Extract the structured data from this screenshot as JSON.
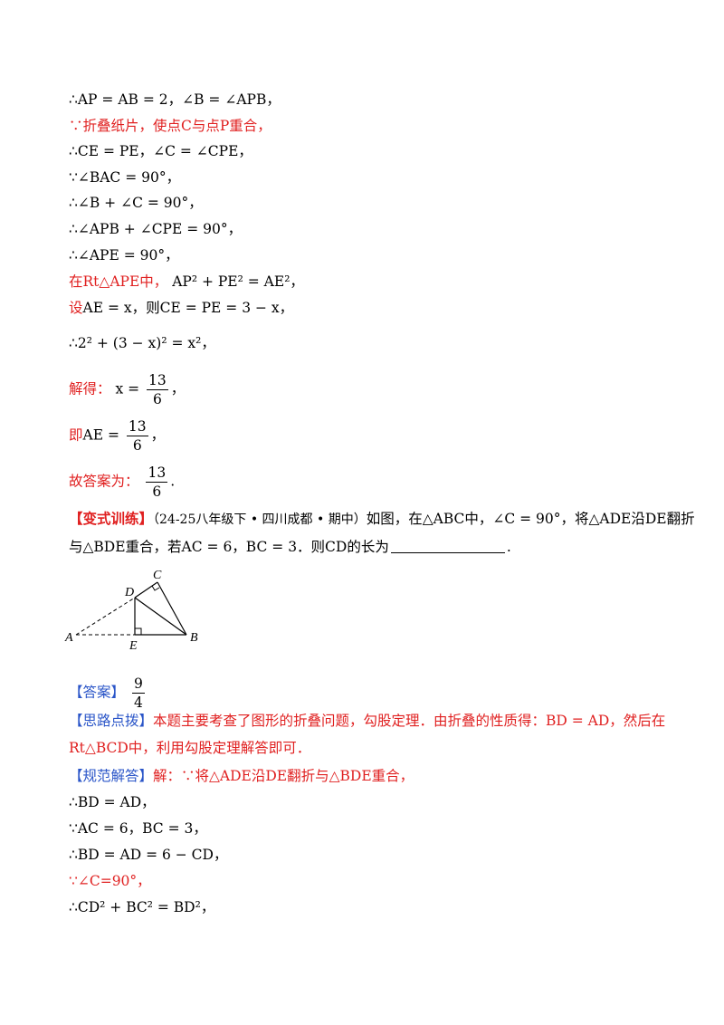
{
  "lines": {
    "l1": {
      "text": "∴AP = AB = 2，∠B = ∠APB，"
    },
    "l2": {
      "text": "∵折叠纸片，使点C与点P重合，"
    },
    "l3": {
      "text": "∴CE = PE，∠C = ∠CPE，"
    },
    "l4": {
      "text": "∵∠BAC = 90°，"
    },
    "l5": {
      "text": "∴∠B + ∠C = 90°，"
    },
    "l6": {
      "text": "∴∠APB + ∠CPE = 90°，"
    },
    "l7": {
      "text": "∴∠APE = 90°，"
    },
    "l8": {
      "prefix": "在Rt△APE中，",
      "formula": "AP² + PE² = AE²，"
    },
    "l9": {
      "prefix": "设",
      "formula": "AE = x，则CE = PE = 3 − x，"
    },
    "l10": {
      "text": "∴2² + (3 − x)² = x²，"
    },
    "l11": {
      "prefix": "解得：",
      "lhs": "x =",
      "num": "13",
      "den": "6",
      "suffix": "，"
    },
    "l12": {
      "prefix": "即",
      "lhs": "AE =",
      "num": "13",
      "den": "6",
      "suffix": "，"
    },
    "l13": {
      "prefix": "故答案为：",
      "num": "13",
      "den": "6",
      "suffix": "."
    }
  },
  "problem": {
    "tag": "【变式训练】",
    "source": "（24-25八年级下 • 四川成都 • 期中）",
    "line1": "如图，在△ABC中，∠C = 90°，将△ADE沿DE翻折",
    "line2a": "与△BDE重合，若AC = 6，BC = 3．则CD的长为",
    "line2b": "."
  },
  "figure": {
    "labels": {
      "A": "A",
      "B": "B",
      "C": "C",
      "D": "D",
      "E": "E"
    }
  },
  "answer": {
    "tag": "【答案】",
    "num": "9",
    "den": "4"
  },
  "hint": {
    "tag": "【思路点拨】",
    "line1": "本题主要考查了图形的折叠问题，勾股定理．由折叠的性质得：BD = AD，然后在",
    "line2": "Rt△BCD中，利用勾股定理解答即可．"
  },
  "solution": {
    "tag": "【规范解答】",
    "line1": "解：∵将△ADE沿DE翻折与△BDE重合，",
    "line2": "∴BD = AD，",
    "line3": "∵AC = 6，BC = 3，",
    "line4": "∴BD = AD = 6 − CD，",
    "line5": "∵∠C=90°，",
    "line6": "∴CD² + BC² = BD²，"
  },
  "colors": {
    "red": "#e02020",
    "blue": "#2a55c8",
    "black": "#000000"
  }
}
